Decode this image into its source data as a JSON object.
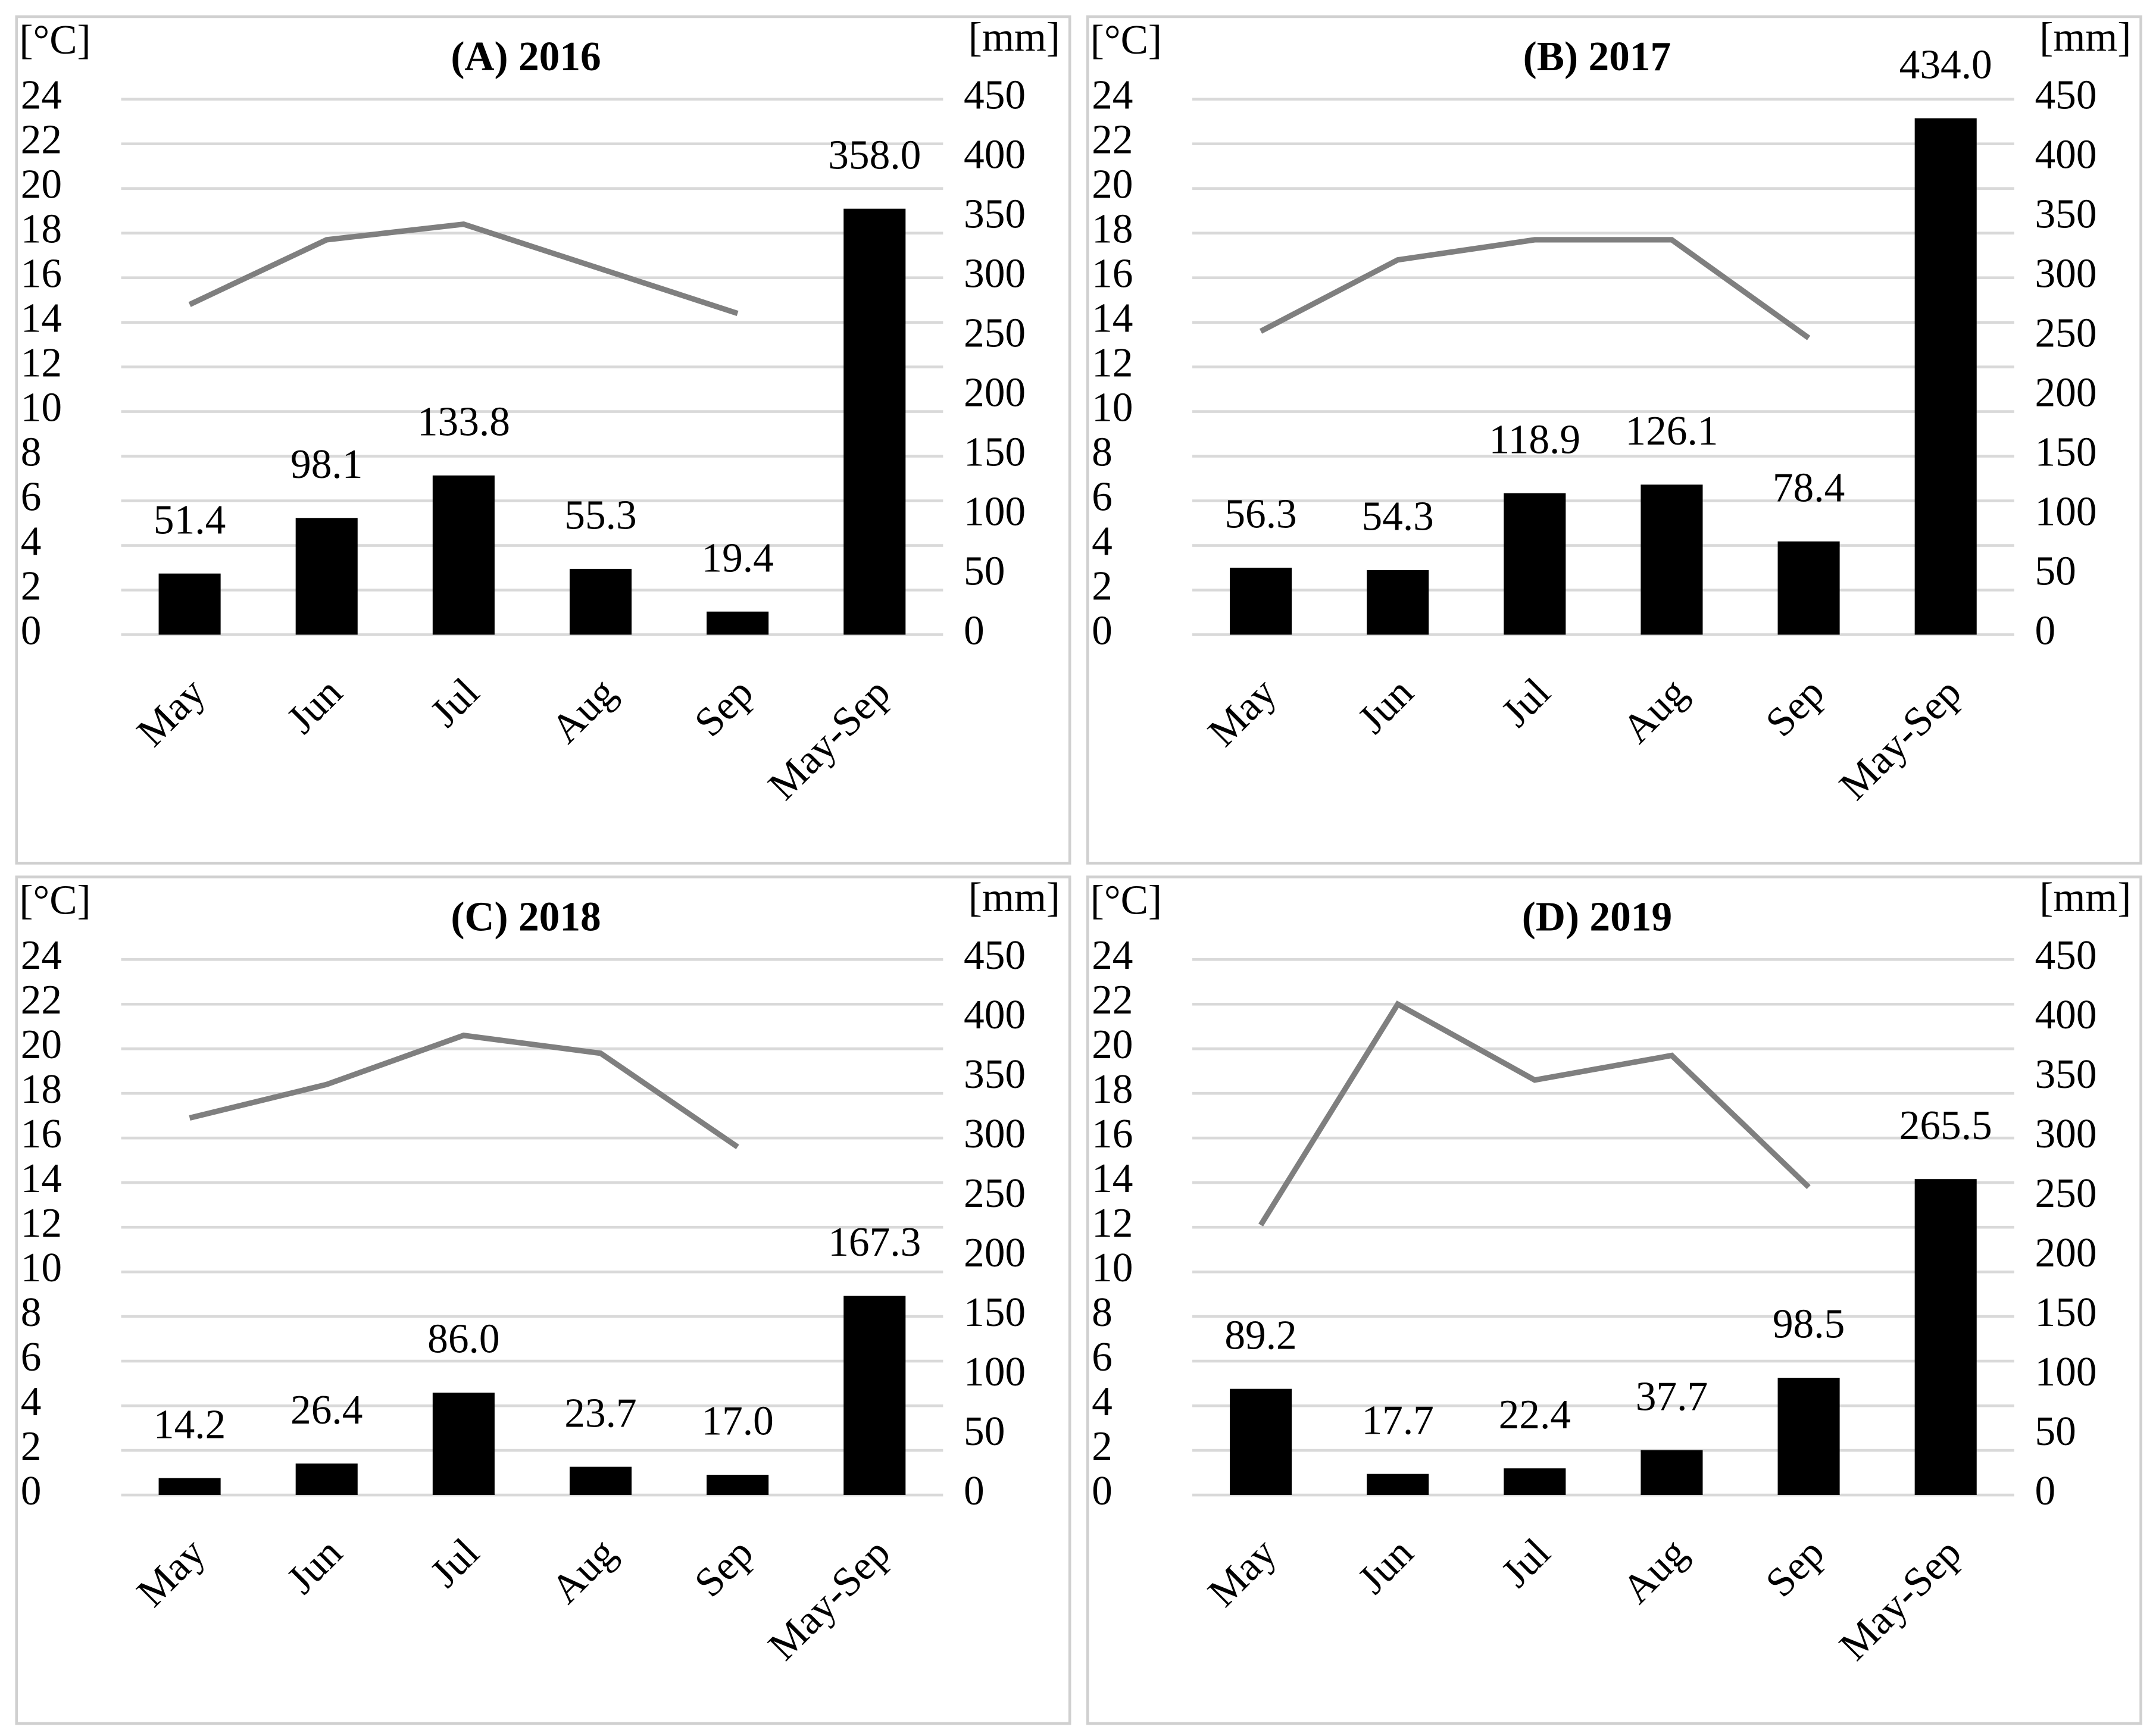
{
  "chart_data": [
    {
      "type": "bar",
      "title": "(A) 2016",
      "y_label": "[°C]",
      "y2_label": "[mm]",
      "categories": [
        "May",
        "Jun",
        "Jul",
        "Aug",
        "Sep",
        "May-Sep"
      ],
      "series": [
        {
          "type": "bar",
          "axis": "y2",
          "color": "#000000",
          "values": [
            51.4,
            98.1,
            133.8,
            55.3,
            19.4,
            358.0
          ],
          "value_labels": [
            "51.4",
            "98.1",
            "133.8",
            "55.3",
            "19.4",
            "358.0"
          ]
        },
        {
          "type": "line",
          "axis": "y",
          "color": "#7f7f7f",
          "values": [
            14.8,
            17.7,
            18.4,
            16.4,
            14.4,
            null
          ]
        }
      ],
      "ylim": [
        0,
        24
      ],
      "yticks": [
        0,
        2,
        4,
        6,
        8,
        10,
        12,
        14,
        16,
        18,
        20,
        22,
        24
      ],
      "y2lim": [
        0,
        450
      ],
      "y2ticks": [
        0,
        50,
        100,
        150,
        200,
        250,
        300,
        350,
        400,
        450
      ],
      "grid": true
    },
    {
      "type": "bar",
      "title": "(B) 2017",
      "y_label": "[°C]",
      "y2_label": "[mm]",
      "categories": [
        "May",
        "Jun",
        "Jul",
        "Aug",
        "Sep",
        "May-Sep"
      ],
      "series": [
        {
          "type": "bar",
          "axis": "y2",
          "color": "#000000",
          "values": [
            56.3,
            54.3,
            118.9,
            126.1,
            78.4,
            434.0
          ],
          "value_labels": [
            "56.3",
            "54.3",
            "118.9",
            "126.1",
            "78.4",
            "434.0"
          ]
        },
        {
          "type": "line",
          "axis": "y",
          "color": "#7f7f7f",
          "values": [
            13.6,
            16.8,
            17.7,
            17.7,
            13.3,
            null
          ]
        }
      ],
      "ylim": [
        0,
        24
      ],
      "yticks": [
        0,
        2,
        4,
        6,
        8,
        10,
        12,
        14,
        16,
        18,
        20,
        22,
        24
      ],
      "y2lim": [
        0,
        450
      ],
      "y2ticks": [
        0,
        50,
        100,
        150,
        200,
        250,
        300,
        350,
        400,
        450
      ],
      "grid": true
    },
    {
      "type": "bar",
      "title": "(C) 2018",
      "y_label": "[°C]",
      "y2_label": "[mm]",
      "categories": [
        "May",
        "Jun",
        "Jul",
        "Aug",
        "Sep",
        "May-Sep"
      ],
      "series": [
        {
          "type": "bar",
          "axis": "y2",
          "color": "#000000",
          "values": [
            14.2,
            26.4,
            86.0,
            23.7,
            17.0,
            167.3
          ],
          "value_labels": [
            "14.2",
            "26.4",
            "86.0",
            "23.7",
            "17.0",
            "167.3"
          ]
        },
        {
          "type": "line",
          "axis": "y",
          "color": "#7f7f7f",
          "values": [
            16.9,
            18.4,
            20.6,
            19.8,
            15.6,
            null
          ]
        }
      ],
      "ylim": [
        0,
        24
      ],
      "yticks": [
        0,
        2,
        4,
        6,
        8,
        10,
        12,
        14,
        16,
        18,
        20,
        22,
        24
      ],
      "y2lim": [
        0,
        450
      ],
      "y2ticks": [
        0,
        50,
        100,
        150,
        200,
        250,
        300,
        350,
        400,
        450
      ],
      "grid": true
    },
    {
      "type": "bar",
      "title": "(D) 2019",
      "y_label": "[°C]",
      "y2_label": "[mm]",
      "categories": [
        "May",
        "Jun",
        "Jul",
        "Aug",
        "Sep",
        "May-Sep"
      ],
      "series": [
        {
          "type": "bar",
          "axis": "y2",
          "color": "#000000",
          "values": [
            89.2,
            17.7,
            22.4,
            37.7,
            98.5,
            265.5
          ],
          "value_labels": [
            "89.2",
            "17.7",
            "22.4",
            "37.7",
            "98.5",
            "265.5"
          ]
        },
        {
          "type": "line",
          "axis": "y",
          "color": "#7f7f7f",
          "values": [
            12.1,
            22.0,
            18.6,
            19.7,
            13.8,
            null
          ]
        }
      ],
      "ylim": [
        0,
        24
      ],
      "yticks": [
        0,
        2,
        4,
        6,
        8,
        10,
        12,
        14,
        16,
        18,
        20,
        22,
        24
      ],
      "y2lim": [
        0,
        450
      ],
      "y2ticks": [
        0,
        50,
        100,
        150,
        200,
        250,
        300,
        350,
        400,
        450
      ],
      "grid": true
    }
  ]
}
